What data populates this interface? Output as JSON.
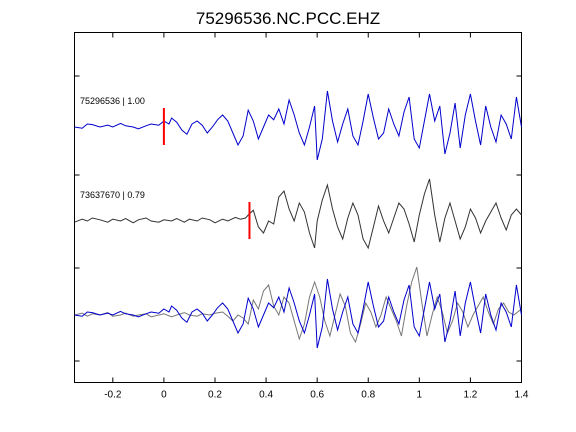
{
  "chart_data": {
    "type": "line",
    "title": "75296536.NC.PCC.EHZ",
    "xlabel": "",
    "ylabel": "",
    "xlim": [
      -0.35,
      1.4
    ],
    "x_ticks": [
      -0.2,
      0,
      0.2,
      0.4,
      0.6,
      0.8,
      1,
      1.2,
      1.4
    ],
    "x_tick_labels": [
      "-0.2",
      "0",
      "0.2",
      "0.4",
      "0.6",
      "0.8",
      "1",
      "1.2",
      "1.4"
    ],
    "grid": false,
    "colors": {
      "primary": "#0000cc",
      "secondary": "#333333",
      "overlay_gray": "#777777",
      "pick": "#ff0000"
    },
    "panels": [
      {
        "label": "75296536 | 1.00",
        "pick_time": 0.0,
        "series": [
          {
            "color": "#0000cc",
            "x": [
              -0.35,
              -0.32,
              -0.3,
              -0.28,
              -0.25,
              -0.22,
              -0.2,
              -0.17,
              -0.15,
              -0.12,
              -0.1,
              -0.07,
              -0.05,
              -0.02,
              0.0,
              0.02,
              0.03,
              0.05,
              0.07,
              0.09,
              0.11,
              0.13,
              0.15,
              0.17,
              0.19,
              0.21,
              0.23,
              0.25,
              0.27,
              0.29,
              0.31,
              0.33,
              0.35,
              0.37,
              0.39,
              0.41,
              0.43,
              0.45,
              0.47,
              0.49,
              0.51,
              0.53,
              0.55,
              0.57,
              0.59,
              0.6,
              0.62,
              0.64,
              0.66,
              0.68,
              0.7,
              0.72,
              0.74,
              0.76,
              0.78,
              0.8,
              0.82,
              0.84,
              0.86,
              0.88,
              0.9,
              0.92,
              0.94,
              0.96,
              0.98,
              1.0,
              1.02,
              1.04,
              1.06,
              1.08,
              1.1,
              1.12,
              1.14,
              1.16,
              1.18,
              1.2,
              1.22,
              1.24,
              1.26,
              1.28,
              1.3,
              1.32,
              1.34,
              1.36,
              1.38,
              1.4
            ],
            "y": [
              0.0,
              -0.02,
              0.05,
              0.04,
              0.0,
              0.03,
              0.0,
              0.06,
              0.02,
              0.0,
              -0.03,
              0.02,
              0.05,
              0.03,
              0.1,
              0.05,
              0.15,
              0.08,
              -0.05,
              -0.12,
              0.05,
              0.1,
              0.03,
              -0.1,
              0.0,
              0.12,
              0.2,
              0.1,
              -0.1,
              -0.3,
              -0.15,
              0.28,
              0.1,
              -0.2,
              0.0,
              0.2,
              0.12,
              0.3,
              0.05,
              0.45,
              0.2,
              -0.1,
              -0.3,
              0.0,
              0.35,
              -0.55,
              -0.2,
              0.6,
              0.1,
              -0.25,
              0.05,
              0.3,
              -0.15,
              -0.3,
              0.1,
              0.55,
              0.15,
              -0.2,
              -0.1,
              0.3,
              0.05,
              -0.15,
              0.25,
              0.5,
              -0.2,
              -0.35,
              0.1,
              0.55,
              0.1,
              0.35,
              -0.45,
              -0.1,
              0.4,
              -0.35,
              0.2,
              0.55,
              0.1,
              -0.3,
              0.35,
              0.0,
              -0.25,
              0.2,
              0.05,
              -0.2,
              0.5,
              0.0
            ]
          }
        ]
      },
      {
        "label": "73637670 | 0.79",
        "pick_time": 0.335,
        "series": [
          {
            "color": "#333333",
            "x": [
              -0.35,
              -0.32,
              -0.3,
              -0.28,
              -0.25,
              -0.22,
              -0.2,
              -0.17,
              -0.15,
              -0.12,
              -0.1,
              -0.07,
              -0.05,
              -0.02,
              0.0,
              0.03,
              0.05,
              0.08,
              0.1,
              0.13,
              0.15,
              0.18,
              0.2,
              0.23,
              0.25,
              0.28,
              0.3,
              0.32,
              0.33,
              0.35,
              0.37,
              0.39,
              0.41,
              0.43,
              0.45,
              0.47,
              0.49,
              0.51,
              0.53,
              0.55,
              0.57,
              0.59,
              0.6,
              0.62,
              0.64,
              0.66,
              0.68,
              0.7,
              0.72,
              0.74,
              0.76,
              0.78,
              0.8,
              0.82,
              0.84,
              0.86,
              0.88,
              0.9,
              0.92,
              0.94,
              0.96,
              0.98,
              1.0,
              1.02,
              1.04,
              1.06,
              1.08,
              1.1,
              1.12,
              1.14,
              1.16,
              1.18,
              1.2,
              1.22,
              1.24,
              1.26,
              1.28,
              1.3,
              1.32,
              1.34,
              1.36,
              1.38,
              1.4
            ],
            "y": [
              -0.02,
              0.03,
              0.0,
              0.05,
              0.02,
              -0.02,
              0.03,
              0.0,
              0.04,
              -0.03,
              0.02,
              0.05,
              0.0,
              -0.02,
              0.02,
              0.0,
              0.04,
              -0.02,
              0.03,
              0.0,
              0.05,
              0.02,
              -0.03,
              0.03,
              0.0,
              0.06,
              0.03,
              0.05,
              0.1,
              0.18,
              -0.1,
              -0.2,
              0.0,
              -0.05,
              0.4,
              0.5,
              0.2,
              0.0,
              0.3,
              0.15,
              -0.2,
              -0.45,
              0.0,
              0.35,
              0.6,
              0.2,
              -0.1,
              -0.3,
              0.05,
              0.3,
              0.1,
              -0.3,
              -0.45,
              -0.1,
              0.25,
              0.0,
              -0.2,
              0.05,
              0.3,
              0.2,
              -0.05,
              -0.35,
              0.1,
              0.45,
              0.7,
              0.1,
              -0.35,
              0.05,
              0.3,
              0.0,
              -0.3,
              -0.1,
              0.2,
              0.05,
              -0.2,
              0.0,
              0.15,
              0.3,
              0.05,
              -0.15,
              0.1,
              0.2,
              0.1
            ]
          }
        ]
      },
      {
        "label": "",
        "series": [
          {
            "color": "#777777",
            "x": [
              -0.35,
              -0.32,
              -0.3,
              -0.28,
              -0.25,
              -0.22,
              -0.2,
              -0.17,
              -0.15,
              -0.12,
              -0.1,
              -0.07,
              -0.05,
              -0.02,
              0.0,
              0.03,
              0.05,
              0.08,
              0.1,
              0.13,
              0.15,
              0.18,
              0.2,
              0.23,
              0.25,
              0.27,
              0.29,
              0.31,
              0.33,
              0.35,
              0.37,
              0.39,
              0.41,
              0.43,
              0.45,
              0.47,
              0.49,
              0.51,
              0.53,
              0.55,
              0.57,
              0.59,
              0.61,
              0.63,
              0.65,
              0.67,
              0.69,
              0.71,
              0.73,
              0.75,
              0.77,
              0.79,
              0.81,
              0.83,
              0.85,
              0.87,
              0.89,
              0.91,
              0.93,
              0.95,
              0.97,
              0.99,
              1.01,
              1.03,
              1.05,
              1.07,
              1.09,
              1.11,
              1.13,
              1.15,
              1.17,
              1.19,
              1.21,
              1.23,
              1.25,
              1.27,
              1.29,
              1.31,
              1.33,
              1.35,
              1.37,
              1.4
            ],
            "y": [
              0.0,
              0.03,
              -0.02,
              0.02,
              0.0,
              0.04,
              -0.02,
              0.0,
              0.03,
              -0.02,
              0.0,
              0.02,
              -0.03,
              0.0,
              0.02,
              -0.03,
              0.0,
              0.04,
              0.0,
              -0.02,
              0.02,
              0.0,
              0.03,
              0.05,
              -0.02,
              -0.1,
              0.0,
              -0.05,
              -0.15,
              0.25,
              0.1,
              0.4,
              0.5,
              0.15,
              0.0,
              0.3,
              0.2,
              -0.1,
              -0.4,
              -0.15,
              0.3,
              0.55,
              0.3,
              -0.1,
              -0.35,
              0.0,
              0.35,
              0.15,
              -0.3,
              -0.45,
              -0.15,
              0.2,
              0.05,
              -0.2,
              0.0,
              0.3,
              0.1,
              -0.1,
              -0.35,
              0.15,
              0.55,
              0.8,
              0.2,
              -0.35,
              0.0,
              0.3,
              0.05,
              -0.3,
              -0.1,
              0.2,
              0.05,
              -0.2,
              0.0,
              0.15,
              0.3,
              0.05,
              -0.15,
              0.1,
              0.2,
              0.05,
              0.0,
              0.1
            ]
          },
          {
            "color": "#0000cc",
            "x": [
              -0.35,
              -0.32,
              -0.3,
              -0.28,
              -0.25,
              -0.22,
              -0.2,
              -0.17,
              -0.15,
              -0.12,
              -0.1,
              -0.07,
              -0.05,
              -0.02,
              0.0,
              0.02,
              0.03,
              0.05,
              0.07,
              0.09,
              0.11,
              0.13,
              0.15,
              0.17,
              0.19,
              0.21,
              0.23,
              0.25,
              0.27,
              0.29,
              0.31,
              0.33,
              0.35,
              0.37,
              0.39,
              0.41,
              0.43,
              0.45,
              0.47,
              0.49,
              0.51,
              0.53,
              0.55,
              0.57,
              0.59,
              0.6,
              0.62,
              0.64,
              0.66,
              0.68,
              0.7,
              0.72,
              0.74,
              0.76,
              0.78,
              0.8,
              0.82,
              0.84,
              0.86,
              0.88,
              0.9,
              0.92,
              0.94,
              0.96,
              0.98,
              1.0,
              1.02,
              1.04,
              1.06,
              1.08,
              1.1,
              1.12,
              1.14,
              1.16,
              1.18,
              1.2,
              1.22,
              1.24,
              1.26,
              1.28,
              1.3,
              1.32,
              1.34,
              1.36,
              1.38,
              1.4
            ],
            "y": [
              0.0,
              -0.02,
              0.05,
              0.04,
              0.0,
              0.03,
              0.0,
              0.06,
              0.02,
              0.0,
              -0.03,
              0.02,
              0.05,
              0.03,
              0.1,
              0.05,
              0.15,
              0.08,
              -0.05,
              -0.12,
              0.05,
              0.1,
              0.03,
              -0.1,
              0.0,
              0.12,
              0.2,
              0.1,
              -0.1,
              -0.3,
              -0.15,
              0.28,
              0.1,
              -0.2,
              0.0,
              0.2,
              0.12,
              0.3,
              0.05,
              0.45,
              0.2,
              -0.1,
              -0.3,
              0.0,
              0.35,
              -0.55,
              -0.2,
              0.6,
              0.1,
              -0.25,
              0.05,
              0.3,
              -0.15,
              -0.3,
              0.1,
              0.55,
              0.15,
              -0.2,
              -0.1,
              0.3,
              0.05,
              -0.15,
              0.25,
              0.5,
              -0.2,
              -0.35,
              0.1,
              0.55,
              0.1,
              0.35,
              -0.45,
              -0.1,
              0.4,
              -0.35,
              0.2,
              0.55,
              0.1,
              -0.3,
              0.35,
              0.0,
              -0.25,
              0.2,
              0.05,
              -0.2,
              0.5,
              0.0
            ]
          }
        ]
      }
    ]
  }
}
